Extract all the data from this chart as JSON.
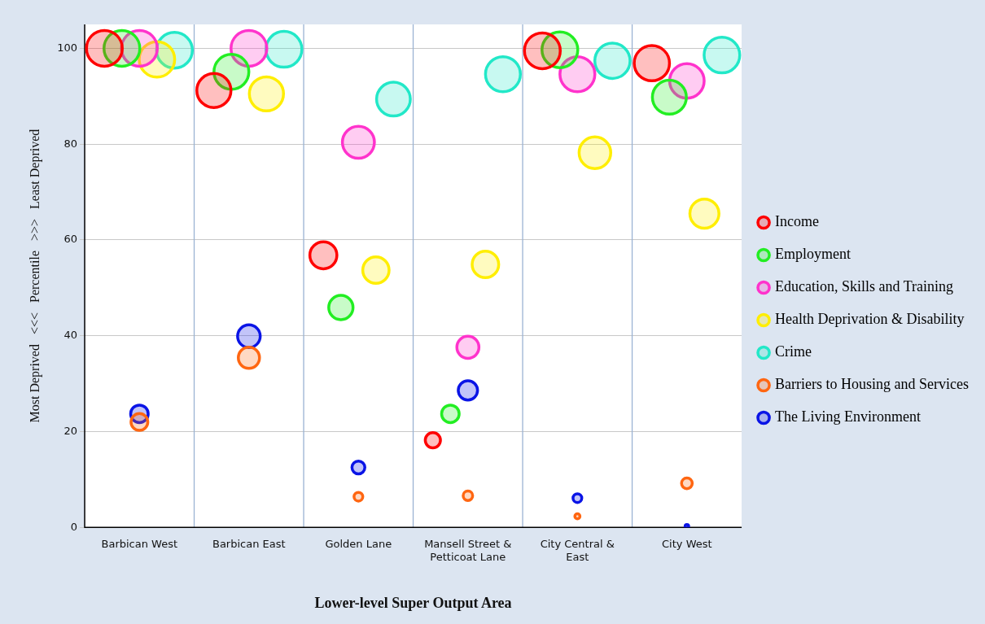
{
  "chart_data": {
    "type": "bubble",
    "categories": [
      "Barbican West",
      "Barbican East",
      "Golden Lane",
      "Mansell Street & Petticoat Lane",
      "City Central & East",
      "City West"
    ],
    "xlabel": "Lower-level Super Output Area",
    "ylabel": "Most Deprived   <<<   Percentile   >>>   Least Deprived",
    "ylim": [
      0,
      105
    ],
    "yticks": [
      0,
      20,
      40,
      60,
      80,
      100
    ],
    "grid": "y",
    "legend": "right",
    "series": [
      {
        "name": "Income",
        "color": "#ff0000",
        "values": [
          100,
          91.2,
          56.8,
          18.2,
          99.5,
          96.9
        ],
        "sizes": [
          1,
          0.91,
          0.57,
          0.18,
          1,
          0.97
        ]
      },
      {
        "name": "Employment",
        "color": "#22ee22",
        "values": [
          100,
          95.1,
          45.9,
          23.7,
          99.7,
          89.8
        ],
        "sizes": [
          1,
          0.95,
          0.46,
          0.24,
          1,
          0.9
        ]
      },
      {
        "name": "Education, Skills and Training",
        "color": "#ff33cc",
        "values": [
          100,
          100,
          80.4,
          37.6,
          94.6,
          93.2
        ],
        "sizes": [
          1,
          1,
          0.8,
          0.38,
          0.95,
          0.93
        ]
      },
      {
        "name": "Health Deprivation & Disability",
        "color": "#ffee00",
        "values": [
          97.7,
          90.5,
          53.7,
          54.9,
          78.2,
          65.5
        ],
        "sizes": [
          0.98,
          0.91,
          0.54,
          0.55,
          0.78,
          0.66
        ]
      },
      {
        "name": "Crime",
        "color": "#22e8c8",
        "values": [
          99.6,
          99.8,
          89.4,
          94.6,
          97.4,
          98.6
        ],
        "sizes": [
          1,
          1,
          0.89,
          0.95,
          0.97,
          0.99
        ]
      },
      {
        "name": "Barriers to Housing and Services",
        "color": "#ff6611",
        "values": [
          22,
          35.4,
          6.4,
          6.6,
          2.3,
          9.2
        ],
        "sizes": [
          0.22,
          0.35,
          0.06,
          0.07,
          0.02,
          0.09
        ]
      },
      {
        "name": "The Living Environment",
        "color": "#0a14e6",
        "values": [
          23.7,
          39.9,
          12.5,
          28.6,
          6.1,
          0.2
        ],
        "sizes": [
          0.24,
          0.4,
          0.13,
          0.29,
          0.06,
          0.01
        ]
      }
    ]
  }
}
